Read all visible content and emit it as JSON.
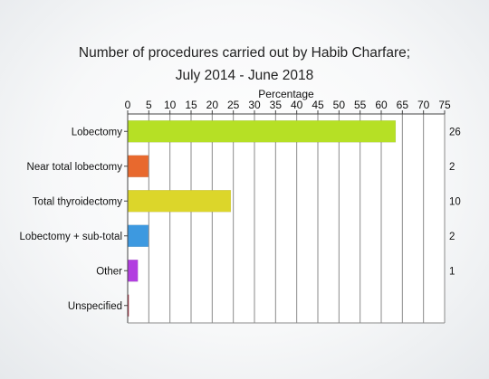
{
  "chart_data": {
    "type": "bar",
    "orientation": "horizontal",
    "title_lines": [
      "Number of procedures carried out by Habib Charfare;",
      "July 2014 - June 2018"
    ],
    "xlabel": "Percentage",
    "xlim": [
      0,
      75
    ],
    "xticks": [
      0,
      5,
      10,
      15,
      20,
      25,
      30,
      35,
      40,
      45,
      50,
      55,
      60,
      65,
      70,
      75
    ],
    "grid": true,
    "categories": [
      "Lobectomy",
      "Near total lobectomy",
      "Total thyroidectomy",
      "Lobectomy + sub-total",
      "Other",
      "Unspecified"
    ],
    "values": [
      63.4,
      4.9,
      24.4,
      4.9,
      2.4,
      0
    ],
    "counts": [
      "26",
      "2",
      "10",
      "2",
      "1",
      ""
    ],
    "colors": [
      "#b6e025",
      "#e8692e",
      "#dcd62a",
      "#3d99e0",
      "#b23ee0",
      "#c0203a"
    ]
  }
}
